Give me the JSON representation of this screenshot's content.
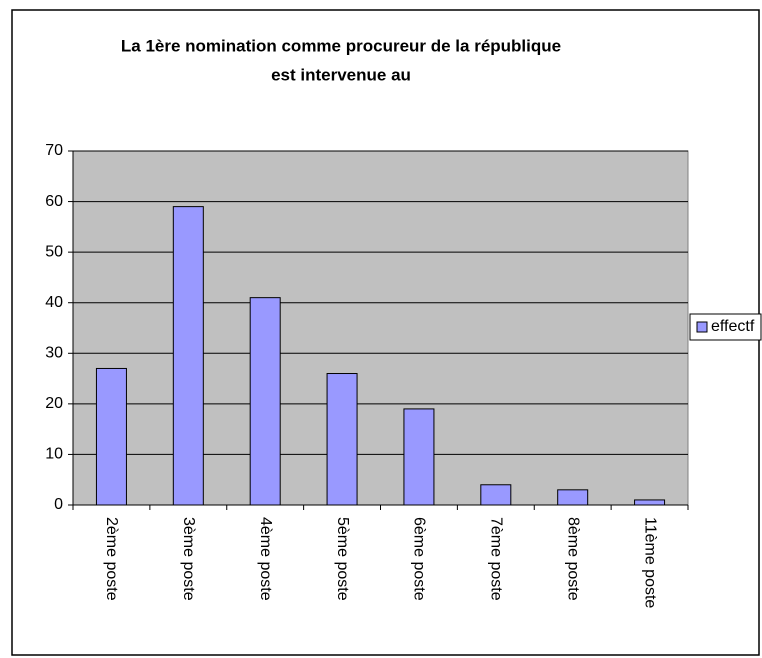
{
  "chart_data": {
    "type": "bar",
    "title": [
      "La 1ère nomination comme procureur de la république",
      "est intervenue au"
    ],
    "categories": [
      "2ème poste",
      "3ème poste",
      "4ème poste",
      "5ème poste",
      "6ème poste",
      "7ème poste",
      "8ème poste",
      "11ème poste"
    ],
    "series": [
      {
        "name": "effectf",
        "color": "#9999ff",
        "values": [
          27,
          59,
          41,
          26,
          19,
          4,
          3,
          1
        ]
      }
    ],
    "ylim": [
      0,
      70
    ],
    "yticks": [
      0,
      10,
      20,
      30,
      40,
      50,
      60,
      70
    ],
    "grid": true,
    "legend": "right"
  }
}
